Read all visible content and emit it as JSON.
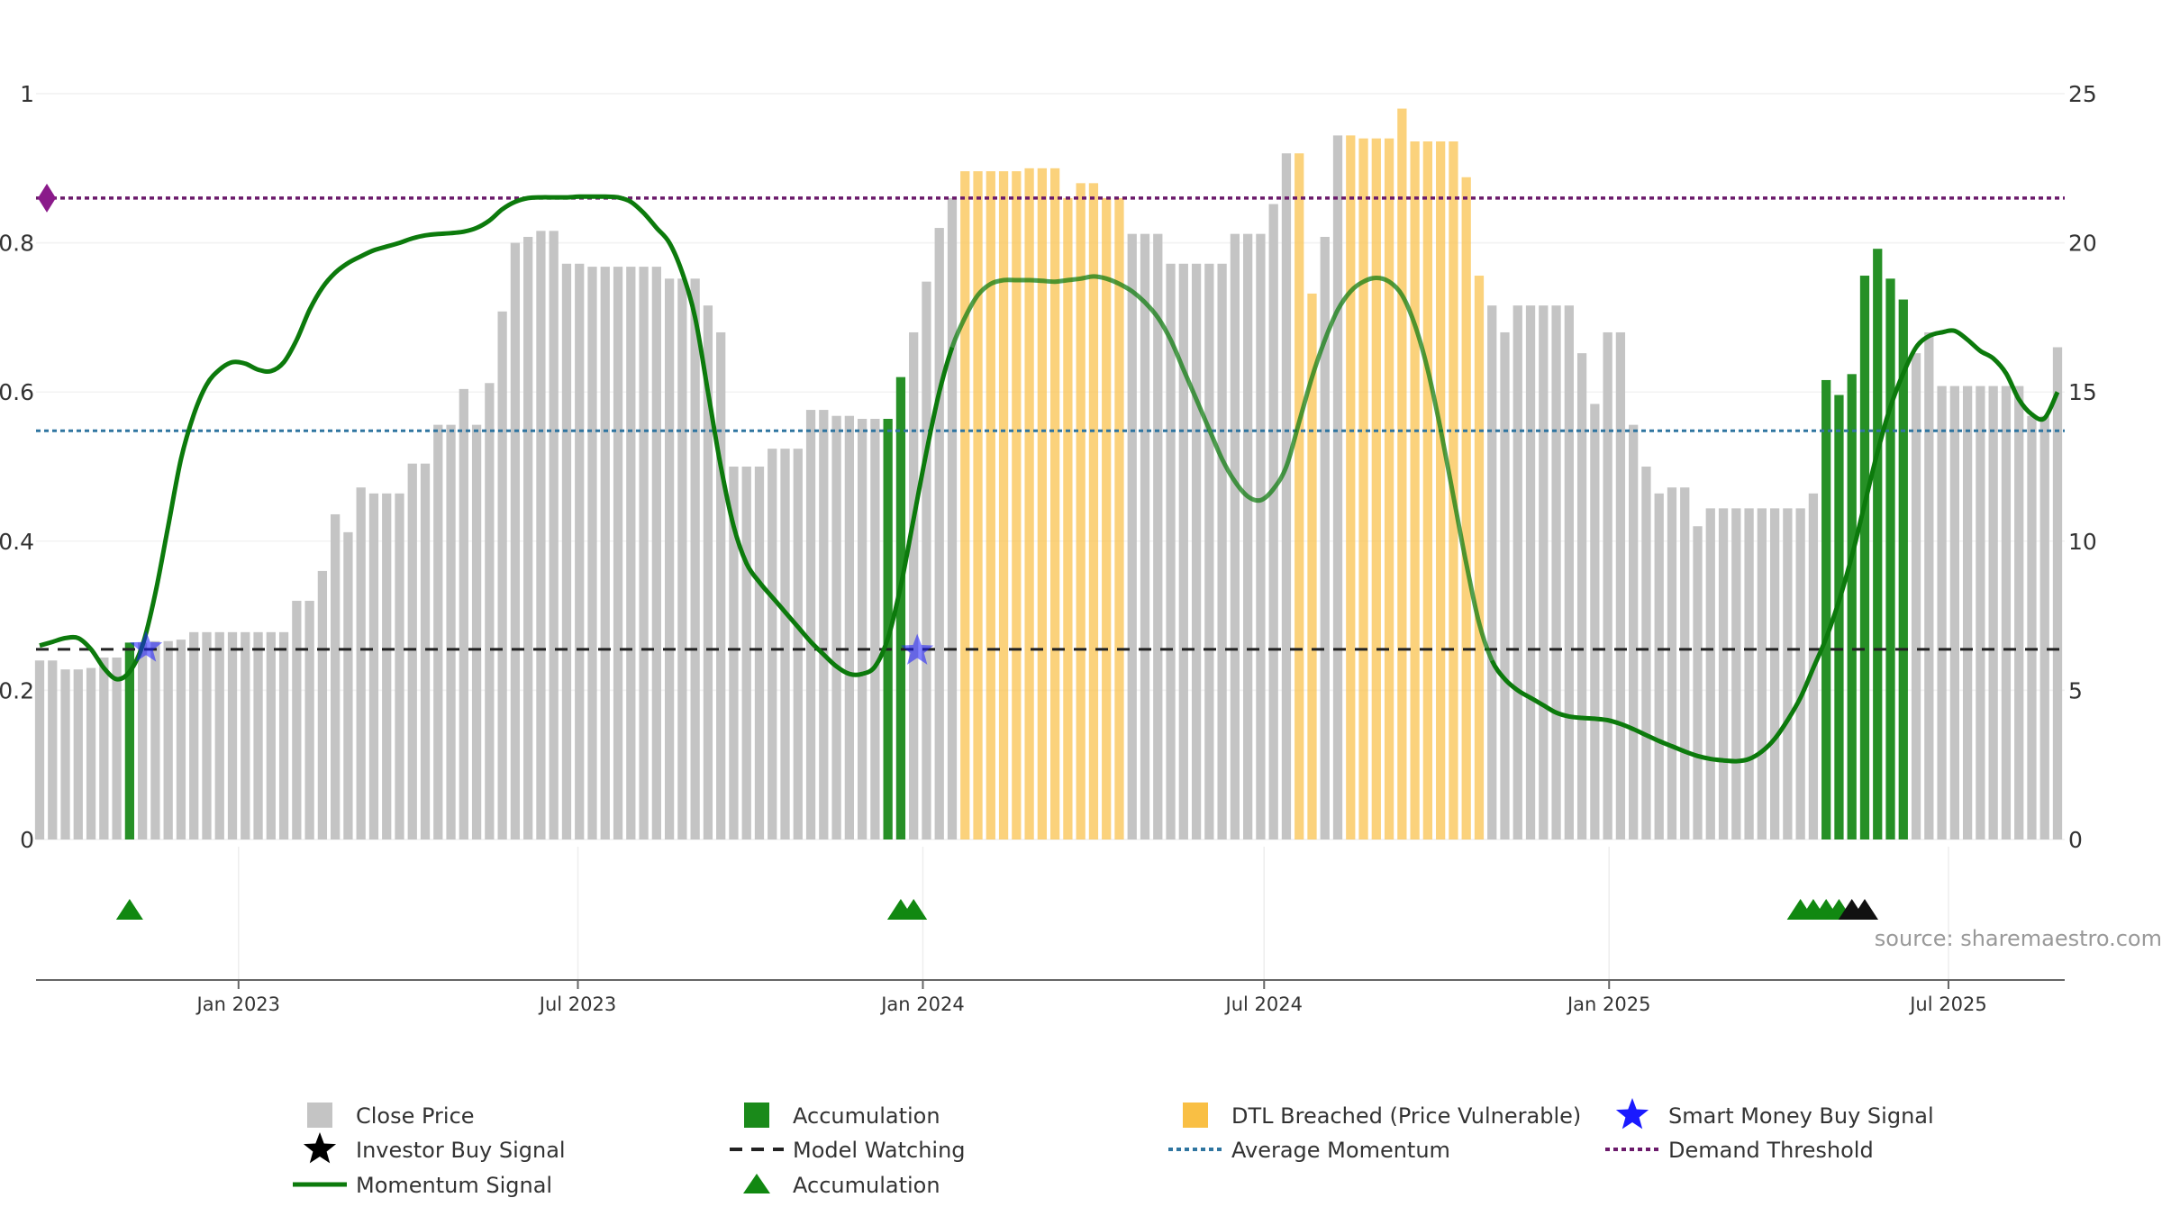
{
  "chart_data": {
    "type": "bar",
    "source": "source: sharemaestro.com",
    "left_axis": {
      "ylim": [
        0,
        1
      ],
      "ticks": [
        0,
        0.2,
        0.4,
        0.6,
        0.8,
        1
      ],
      "tick_labels": [
        "0",
        "0.2",
        "0.4",
        "0.6",
        "0.8",
        "1"
      ]
    },
    "right_axis": {
      "ylim": [
        0,
        25
      ],
      "ticks": [
        0,
        5,
        10,
        15,
        20,
        25
      ],
      "tick_labels": [
        "0",
        "5",
        "10",
        "15",
        "20",
        "25"
      ]
    },
    "x_axis": {
      "start": "2022-09-15",
      "end": "2025-09-01",
      "ticks": [
        {
          "date": "2023-01-01",
          "label": "Jan 2023"
        },
        {
          "date": "2023-07-01",
          "label": "Jul 2023"
        },
        {
          "date": "2024-01-01",
          "label": "Jan 2024"
        },
        {
          "date": "2024-07-01",
          "label": "Jul 2024"
        },
        {
          "date": "2025-01-01",
          "label": "Jan 2025"
        },
        {
          "date": "2025-07-01",
          "label": "Jul 2025"
        }
      ]
    },
    "close_price": {
      "values": [
        6.0,
        6.0,
        5.7,
        5.7,
        5.75,
        6.1,
        6.1,
        6.6,
        6.6,
        6.65,
        6.65,
        6.7,
        6.95,
        6.95,
        6.95,
        6.95,
        6.95,
        6.95,
        6.95,
        6.95,
        8.0,
        8.0,
        9.0,
        10.9,
        10.3,
        11.8,
        11.6,
        11.6,
        11.6,
        12.6,
        12.6,
        13.9,
        13.9,
        15.1,
        13.9,
        15.3,
        17.7,
        20.0,
        20.2,
        20.4,
        20.4,
        19.3,
        19.3,
        19.2,
        19.2,
        19.2,
        19.2,
        19.2,
        19.2,
        18.8,
        18.8,
        18.8,
        17.9,
        17.0,
        12.5,
        12.5,
        12.5,
        13.1,
        13.1,
        13.1,
        14.4,
        14.4,
        14.2,
        14.2,
        14.1,
        14.1,
        14.1,
        15.5,
        17.0,
        18.7,
        20.5,
        21.5,
        22.4,
        22.4,
        22.4,
        22.4,
        22.4,
        22.5,
        22.5,
        22.5,
        21.5,
        22.0,
        22.0,
        21.5,
        21.5,
        20.3,
        20.3,
        20.3,
        19.3,
        19.3,
        19.3,
        19.3,
        19.3,
        20.3,
        20.3,
        20.3,
        21.3,
        23.0,
        23.0,
        18.3,
        20.2,
        23.6,
        23.6,
        23.5,
        23.5,
        23.5,
        24.5,
        23.4,
        23.4,
        23.4,
        23.4,
        22.2,
        18.9,
        17.9,
        17.0,
        17.9,
        17.9,
        17.9,
        17.9,
        17.9,
        16.3,
        14.6,
        17.0,
        17.0,
        13.9,
        12.5,
        11.6,
        11.8,
        11.8,
        10.5,
        11.1,
        11.1,
        11.1,
        11.1,
        11.1,
        11.1,
        11.1,
        11.1,
        11.6,
        15.4,
        14.9,
        15.6,
        18.9,
        19.8,
        18.8,
        18.1,
        16.3,
        17.0,
        15.2,
        15.2,
        15.2,
        15.2,
        15.2,
        15.2,
        15.2,
        14.2,
        14.2,
        16.5
      ],
      "types": [
        "c",
        "c",
        "c",
        "c",
        "c",
        "c",
        "c",
        "a",
        "c",
        "c",
        "c",
        "c",
        "c",
        "c",
        "c",
        "c",
        "c",
        "c",
        "c",
        "c",
        "c",
        "c",
        "c",
        "c",
        "c",
        "c",
        "c",
        "c",
        "c",
        "c",
        "c",
        "c",
        "c",
        "c",
        "c",
        "c",
        "c",
        "c",
        "c",
        "c",
        "c",
        "c",
        "c",
        "c",
        "c",
        "c",
        "c",
        "c",
        "c",
        "c",
        "c",
        "c",
        "c",
        "c",
        "c",
        "c",
        "c",
        "c",
        "c",
        "c",
        "c",
        "c",
        "c",
        "c",
        "c",
        "c",
        "a",
        "a",
        "c",
        "c",
        "c",
        "c",
        "d",
        "d",
        "d",
        "d",
        "d",
        "d",
        "d",
        "d",
        "d",
        "d",
        "d",
        "d",
        "d",
        "c",
        "c",
        "c",
        "c",
        "c",
        "c",
        "c",
        "c",
        "c",
        "c",
        "c",
        "c",
        "c",
        "d",
        "d",
        "c",
        "c",
        "d",
        "d",
        "d",
        "d",
        "d",
        "d",
        "d",
        "d",
        "d",
        "d",
        "d",
        "c",
        "c",
        "c",
        "c",
        "c",
        "c",
        "c",
        "c",
        "c",
        "c",
        "c",
        "c",
        "c",
        "c",
        "c",
        "c",
        "c",
        "c",
        "c",
        "c",
        "c",
        "c",
        "c",
        "c",
        "c",
        "c",
        "a",
        "a",
        "a",
        "a",
        "a",
        "a",
        "a",
        "c",
        "c",
        "c",
        "c",
        "c",
        "c",
        "c",
        "c",
        "c",
        "c",
        "c",
        "c",
        "c",
        "c",
        "c",
        "c"
      ]
    },
    "momentum_signal": {
      "values": [
        0.26,
        0.265,
        0.27,
        0.27,
        0.255,
        0.23,
        0.215,
        0.225,
        0.26,
        0.33,
        0.42,
        0.51,
        0.57,
        0.61,
        0.63,
        0.64,
        0.638,
        0.63,
        0.628,
        0.64,
        0.67,
        0.71,
        0.74,
        0.76,
        0.773,
        0.782,
        0.79,
        0.795,
        0.8,
        0.806,
        0.81,
        0.812,
        0.813,
        0.815,
        0.82,
        0.83,
        0.845,
        0.855,
        0.86,
        0.861,
        0.861,
        0.861,
        0.862,
        0.862,
        0.862,
        0.861,
        0.855,
        0.84,
        0.82,
        0.8,
        0.76,
        0.7,
        0.6,
        0.5,
        0.42,
        0.37,
        0.345,
        0.325,
        0.305,
        0.285,
        0.265,
        0.248,
        0.232,
        0.222,
        0.222,
        0.232,
        0.27,
        0.34,
        0.43,
        0.52,
        0.6,
        0.66,
        0.7,
        0.73,
        0.745,
        0.75,
        0.75,
        0.75,
        0.749,
        0.748,
        0.75,
        0.752,
        0.755,
        0.752,
        0.745,
        0.735,
        0.72,
        0.7,
        0.67,
        0.63,
        0.59,
        0.55,
        0.51,
        0.48,
        0.46,
        0.455,
        0.47,
        0.5,
        0.56,
        0.62,
        0.67,
        0.71,
        0.735,
        0.748,
        0.753,
        0.748,
        0.73,
        0.69,
        0.63,
        0.55,
        0.46,
        0.37,
        0.29,
        0.24,
        0.215,
        0.2,
        0.19,
        0.18,
        0.17,
        0.165,
        0.163,
        0.162,
        0.16,
        0.155,
        0.148,
        0.14,
        0.132,
        0.125,
        0.118,
        0.112,
        0.108,
        0.106,
        0.105,
        0.108,
        0.118,
        0.135,
        0.16,
        0.19,
        0.23,
        0.27,
        0.32,
        0.38,
        0.45,
        0.52,
        0.58,
        0.625,
        0.66,
        0.675,
        0.68,
        0.682,
        0.67,
        0.655,
        0.645,
        0.625,
        0.59,
        0.57,
        0.565,
        0.6
      ],
      "faded_ranges": [
        [
          71,
          113
        ]
      ]
    },
    "average_momentum": 0.548,
    "model_watching": 0.255,
    "demand_threshold": 0.86,
    "smart_money_signals": [
      {
        "index": 8,
        "value": 0.257
      },
      {
        "index": 68,
        "value": 0.253
      }
    ],
    "marker_triangles": [
      7,
      67,
      68,
      137,
      138,
      139,
      140
    ],
    "marker_stars": [
      141,
      142
    ],
    "colors": {
      "close": "#c4c4c4",
      "accumulation": "#1a8a1a",
      "dtl": "#f9bf44",
      "momentum": "#0c7a0c",
      "avg": "#2f75a0",
      "watching": "#222222",
      "threshold": "#6b1a6b",
      "smart_money": "#1a1aff",
      "grid": "#eeeeee"
    },
    "legend": [
      {
        "label": "Close Price",
        "symbol": "square-gray"
      },
      {
        "label": "Accumulation",
        "symbol": "square-green"
      },
      {
        "label": "DTL Breached (Price Vulnerable)",
        "symbol": "square-orange"
      },
      {
        "label": "Smart Money Buy Signal",
        "symbol": "star-blue"
      },
      {
        "label": "Investor Buy Signal",
        "symbol": "star-black"
      },
      {
        "label": "Model Watching",
        "symbol": "dash-black"
      },
      {
        "label": "Average Momentum",
        "symbol": "dot-blue"
      },
      {
        "label": "Demand Threshold",
        "symbol": "dot-purple"
      },
      {
        "label": "Momentum Signal",
        "symbol": "line-green"
      },
      {
        "label": "Accumulation",
        "symbol": "triangle-green"
      }
    ]
  }
}
